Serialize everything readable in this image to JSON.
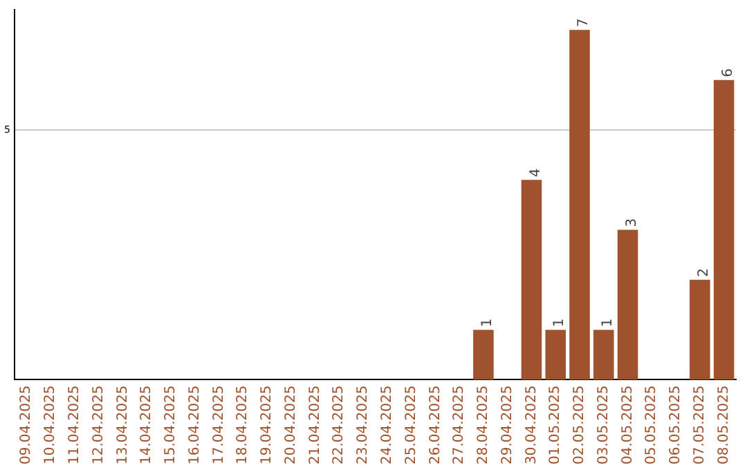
{
  "chart_data": {
    "type": "bar",
    "categories": [
      "09.04.2025",
      "10.04.2025",
      "11.04.2025",
      "12.04.2025",
      "13.04.2025",
      "14.04.2025",
      "15.04.2025",
      "16.04.2025",
      "17.04.2025",
      "18.04.2025",
      "19.04.2025",
      "20.04.2025",
      "21.04.2025",
      "22.04.2025",
      "23.04.2025",
      "24.04.2025",
      "25.04.2025",
      "26.04.2025",
      "27.04.2025",
      "28.04.2025",
      "29.04.2025",
      "30.04.2025",
      "01.05.2025",
      "02.05.2025",
      "03.05.2025",
      "04.05.2025",
      "05.05.2025",
      "06.05.2025",
      "07.05.2025",
      "08.05.2025"
    ],
    "values": [
      null,
      null,
      null,
      null,
      null,
      null,
      null,
      null,
      null,
      null,
      null,
      null,
      null,
      null,
      null,
      null,
      null,
      null,
      null,
      1,
      null,
      4,
      1,
      7,
      1,
      3,
      null,
      null,
      2,
      6
    ],
    "data_labels": true,
    "color": "#a0522d",
    "ylim": [
      0,
      7.4
    ],
    "yticks": [
      5
    ],
    "grid": "y",
    "legend": false
  }
}
